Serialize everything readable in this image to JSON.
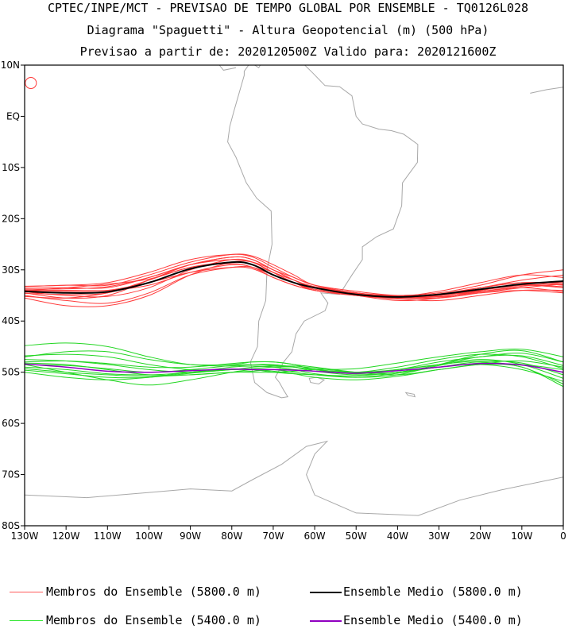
{
  "header": {
    "line1": "CPTEC/INPE/MCT - PREVISAO DE TEMPO GLOBAL POR ENSEMBLE - TQ0126L028",
    "line2": "Diagrama \"Spaguetti\" - Altura Geopotencial (m) (500 hPa)",
    "line3": "Previsao a partir de: 2020120500Z  Valido para: 2020121600Z"
  },
  "chart_data": {
    "type": "line",
    "title": "Diagrama \"Spaguetti\" - Altura Geopotencial (m) (500 hPa)",
    "xlim": [
      -130,
      0
    ],
    "ylim": [
      -80,
      10
    ],
    "x_ticks": [
      {
        "value": -130,
        "label": "130W"
      },
      {
        "value": -120,
        "label": "120W"
      },
      {
        "value": -110,
        "label": "110W"
      },
      {
        "value": -100,
        "label": "100W"
      },
      {
        "value": -90,
        "label": "90W"
      },
      {
        "value": -80,
        "label": "80W"
      },
      {
        "value": -70,
        "label": "70W"
      },
      {
        "value": -60,
        "label": "60W"
      },
      {
        "value": -50,
        "label": "50W"
      },
      {
        "value": -40,
        "label": "40W"
      },
      {
        "value": -30,
        "label": "30W"
      },
      {
        "value": -20,
        "label": "20W"
      },
      {
        "value": -10,
        "label": "10W"
      },
      {
        "value": 0,
        "label": "0"
      }
    ],
    "y_ticks": [
      {
        "value": 10,
        "label": "10N"
      },
      {
        "value": 0,
        "label": "EQ"
      },
      {
        "value": -10,
        "label": "10S"
      },
      {
        "value": -20,
        "label": "20S"
      },
      {
        "value": -30,
        "label": "30S"
      },
      {
        "value": -40,
        "label": "40S"
      },
      {
        "value": -50,
        "label": "50S"
      },
      {
        "value": -60,
        "label": "60S"
      },
      {
        "value": -70,
        "label": "70S"
      },
      {
        "value": -80,
        "label": "80S"
      }
    ],
    "x": [
      -130,
      -120,
      -110,
      -100,
      -90,
      -80,
      -75,
      -70,
      -65,
      -60,
      -50,
      -40,
      -30,
      -20,
      -10,
      0
    ],
    "series": [
      {
        "name": "Ensemble Medio (5800.0 m)",
        "color": "#000000",
        "width": 2,
        "values": [
          -34.2,
          -34.5,
          -34.3,
          -32.5,
          -29.8,
          -28.5,
          -29,
          -31,
          -32.5,
          -33.5,
          -34.8,
          -35.3,
          -34.8,
          -33.8,
          -32.8,
          -32.2
        ]
      },
      {
        "name": "Ensemble Medio (5400.0 m)",
        "color": "#9000c0",
        "width": 1.5,
        "values": [
          -48.4,
          -49,
          -49.8,
          -50,
          -49.7,
          -49.4,
          -49.5,
          -49.5,
          -49.6,
          -49.8,
          -50.2,
          -49.7,
          -49,
          -48.3,
          -48.6,
          -50
        ]
      }
    ],
    "members_5800": [
      [
        -33.3,
        -33,
        -33,
        -31,
        -28.5,
        -27,
        -27.3,
        -29,
        -31,
        -33,
        -34.5,
        -35,
        -34.5,
        -33,
        -31,
        -30
      ],
      [
        -33.6,
        -33.5,
        -33.5,
        -31.5,
        -29,
        -27.5,
        -28,
        -30,
        -31.5,
        -33,
        -34.2,
        -35,
        -34.8,
        -33.5,
        -32,
        -31
      ],
      [
        -34.5,
        -35.5,
        -35,
        -32,
        -29,
        -28,
        -28.5,
        -30.5,
        -32.5,
        -34,
        -35,
        -35.3,
        -34.7,
        -33.5,
        -32.5,
        -32.5
      ],
      [
        -35.5,
        -37,
        -37,
        -35,
        -31,
        -28.5,
        -28.5,
        -30,
        -32,
        -33.5,
        -35,
        -35.5,
        -35,
        -34,
        -33,
        -32.8
      ],
      [
        -34,
        -34,
        -34,
        -33,
        -30.5,
        -29,
        -29.5,
        -31.5,
        -33,
        -34,
        -35,
        -36,
        -35.5,
        -34,
        -33,
        -33.3
      ],
      [
        -35,
        -36,
        -36.5,
        -34.5,
        -31,
        -29.5,
        -29.5,
        -31,
        -32.5,
        -33.5,
        -34.5,
        -35.5,
        -35.2,
        -34.5,
        -34,
        -34.5
      ],
      [
        -33.2,
        -33,
        -32.5,
        -30.5,
        -28,
        -27,
        -27.5,
        -29.5,
        -31.5,
        -33,
        -34.5,
        -35.2,
        -35.5,
        -34.5,
        -33.5,
        -32.8
      ],
      [
        -34.3,
        -35,
        -35.2,
        -33.5,
        -30,
        -28,
        -28.5,
        -30.5,
        -32.5,
        -34,
        -34.8,
        -35.2,
        -34.2,
        -32.5,
        -31,
        -31.5
      ],
      [
        -35.2,
        -35.5,
        -34.5,
        -32,
        -29.5,
        -28.5,
        -29,
        -30.5,
        -32,
        -33.3,
        -34.5,
        -35.3,
        -35,
        -33.5,
        -32.5,
        -33
      ],
      [
        -34,
        -34.2,
        -34,
        -32.5,
        -30.5,
        -29.5,
        -29.8,
        -31.5,
        -33,
        -34,
        -35,
        -35.7,
        -36,
        -35,
        -34,
        -34
      ],
      [
        -33.8,
        -33.7,
        -33.3,
        -31.5,
        -29,
        -28,
        -28.5,
        -30.5,
        -32,
        -33.5,
        -34.5,
        -35.5,
        -35,
        -34.2,
        -33.2,
        -32.5
      ],
      [
        -34.6,
        -34.8,
        -34.5,
        -32,
        -29,
        -27.5,
        -28,
        -30,
        -32,
        -33.5,
        -35,
        -35.5,
        -35.5,
        -34,
        -33,
        -33.5
      ],
      [
        -34.1,
        -33.5,
        -32.8,
        -31.8,
        -29.5,
        -28.8,
        -29.5,
        -31,
        -32.5,
        -33.8,
        -34.6,
        -35.2,
        -35.3,
        -34.3,
        -33.5,
        -34.3
      ]
    ],
    "members_5400": [
      [
        -47,
        -46,
        -46,
        -47.5,
        -48.5,
        -48.5,
        -48,
        -48,
        -48.5,
        -49.5,
        -50.3,
        -49.5,
        -48,
        -47,
        -46.3,
        -48
      ],
      [
        -48,
        -47.8,
        -48.3,
        -49,
        -49,
        -48.3,
        -48,
        -48,
        -48.5,
        -49,
        -50,
        -50.5,
        -49.5,
        -48.5,
        -48.5,
        -49.5
      ],
      [
        -44.8,
        -44.3,
        -45,
        -47,
        -48.5,
        -48.8,
        -48.5,
        -48.5,
        -49,
        -49.5,
        -50,
        -49.5,
        -48.5,
        -47,
        -46.8,
        -48.7
      ],
      [
        -49,
        -49.5,
        -50.3,
        -50.5,
        -50,
        -49,
        -48.8,
        -49,
        -49.5,
        -50.3,
        -51,
        -50.5,
        -48.7,
        -47.5,
        -48.5,
        -51.2
      ],
      [
        -48.5,
        -50,
        -51.5,
        -52.5,
        -51.5,
        -50,
        -49.5,
        -49.5,
        -50,
        -50.5,
        -51,
        -50.2,
        -49,
        -48.5,
        -49.5,
        -51.8
      ],
      [
        -50,
        -51,
        -51.5,
        -51,
        -50,
        -49.5,
        -49.5,
        -50,
        -50.3,
        -50.5,
        -50.7,
        -50,
        -49,
        -48,
        -49,
        -52.3
      ],
      [
        -49.3,
        -50,
        -50.5,
        -50.8,
        -50.5,
        -50,
        -50,
        -50,
        -49.8,
        -49.5,
        -49.3,
        -48.2,
        -47,
        -46,
        -45.5,
        -47
      ],
      [
        -46.8,
        -46.5,
        -47,
        -48.5,
        -49.5,
        -49.5,
        -49.3,
        -49,
        -49,
        -49.5,
        -50,
        -49,
        -47.5,
        -46.5,
        -47,
        -49.3
      ],
      [
        -48.5,
        -48.7,
        -49.3,
        -50,
        -49.5,
        -48.7,
        -48.5,
        -48.7,
        -49,
        -49.8,
        -50.5,
        -50,
        -49,
        -48.2,
        -47.8,
        -49
      ],
      [
        -49.6,
        -50.3,
        -51,
        -51,
        -50.2,
        -49.5,
        -49.5,
        -49.8,
        -50.3,
        -51,
        -51.5,
        -50.8,
        -49.5,
        -48.5,
        -49,
        -52.8
      ],
      [
        -47.5,
        -47.8,
        -48.5,
        -49.5,
        -50,
        -49.5,
        -49,
        -48.8,
        -48.8,
        -49.2,
        -50,
        -50,
        -48.5,
        -46.5,
        -45.8,
        -48
      ],
      [
        -48.2,
        -48.5,
        -49.5,
        -50.5,
        -50.5,
        -50,
        -49.8,
        -49.5,
        -49.5,
        -49.8,
        -50.2,
        -49.5,
        -48.5,
        -47.8,
        -48.2,
        -50.5
      ]
    ],
    "member_colors": {
      "5800": "#ff3a3a",
      "5400": "#22d622"
    },
    "map_color": "#a8a8a8",
    "legend": [
      {
        "label": "Membros do Ensemble (5800.0 m)",
        "color": "#ff5a5a"
      },
      {
        "label": "Ensemble Medio (5800.0 m)",
        "color": "#000000"
      },
      {
        "label": "Membros do Ensemble (5400.0 m)",
        "color": "#2ee62e"
      },
      {
        "label": "Ensemble Medio (5400.0 m)",
        "color": "#9000c0"
      }
    ]
  }
}
